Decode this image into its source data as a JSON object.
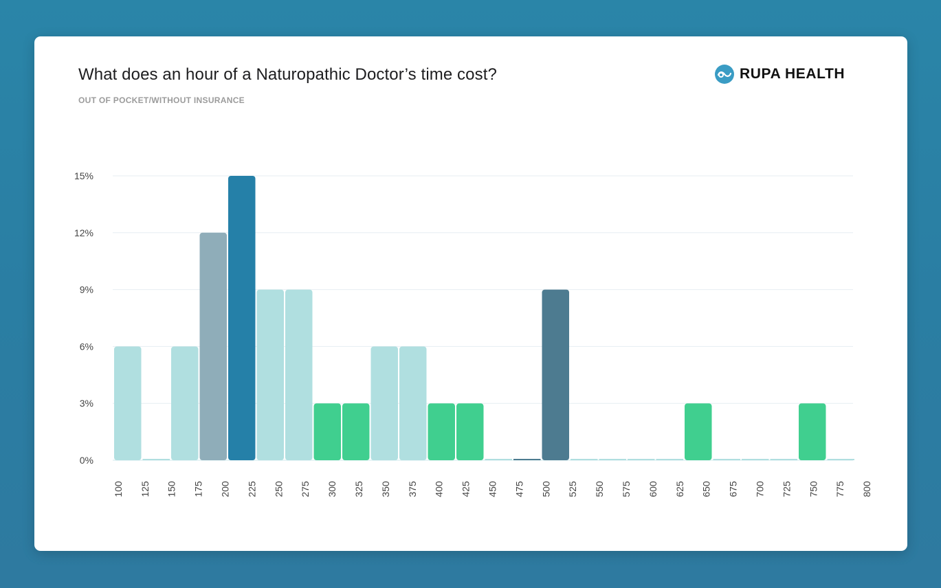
{
  "header": {
    "title": "What does an hour of a Naturopathic Doctor’s time cost?",
    "subtitle": "OUT OF POCKET/WITHOUT INSURANCE",
    "brand_name": "RUPA HEALTH",
    "brand_icon": "rupa-health-logo-icon",
    "brand_color": "#3a9cc4"
  },
  "chart_data": {
    "type": "bar",
    "title": "What does an hour of a Naturopathic Doctor’s time cost?",
    "subtitle": "OUT OF POCKET/WITHOUT INSURANCE",
    "xlabel": "",
    "ylabel": "",
    "ylim": [
      0,
      15
    ],
    "grid": true,
    "y_ticks": [
      {
        "value": 0,
        "label": "0%"
      },
      {
        "value": 3,
        "label": "3%"
      },
      {
        "value": 6,
        "label": "6%"
      },
      {
        "value": 9,
        "label": "9%"
      },
      {
        "value": 12,
        "label": "12%"
      },
      {
        "value": 15,
        "label": "15%"
      }
    ],
    "x_ticks": [
      "100",
      "125",
      "150",
      "175",
      "200",
      "225",
      "250",
      "275",
      "300",
      "325",
      "350",
      "375",
      "400",
      "425",
      "450",
      "475",
      "500",
      "525",
      "550",
      "575",
      "600",
      "625",
      "650",
      "675",
      "700",
      "725",
      "750",
      "775",
      "800"
    ],
    "bars": [
      {
        "bin": "100-125",
        "value": 6,
        "color": "#b0dfe0"
      },
      {
        "bin": "125-150",
        "value": 0,
        "color": "#b0dfe0"
      },
      {
        "bin": "150-175",
        "value": 6,
        "color": "#b0dfe0"
      },
      {
        "bin": "175-200",
        "value": 12,
        "color": "#8fadb9"
      },
      {
        "bin": "200-225",
        "value": 15,
        "color": "#2580a8"
      },
      {
        "bin": "225-250",
        "value": 9,
        "color": "#b0dfe0"
      },
      {
        "bin": "250-275",
        "value": 9,
        "color": "#b0dfe0"
      },
      {
        "bin": "275-300",
        "value": 3,
        "color": "#40cf8f"
      },
      {
        "bin": "300-325",
        "value": 3,
        "color": "#40cf8f"
      },
      {
        "bin": "325-350",
        "value": 6,
        "color": "#b0dfe0"
      },
      {
        "bin": "350-375",
        "value": 6,
        "color": "#b0dfe0"
      },
      {
        "bin": "375-400",
        "value": 3,
        "color": "#40cf8f"
      },
      {
        "bin": "400-425",
        "value": 3,
        "color": "#40cf8f"
      },
      {
        "bin": "425-450",
        "value": 0,
        "color": "#b0dfe0"
      },
      {
        "bin": "450-475",
        "value": 0,
        "color": "#4d7b90"
      },
      {
        "bin": "475-500",
        "value": 9,
        "color": "#4d7b90"
      },
      {
        "bin": "500-525",
        "value": 0,
        "color": "#b0dfe0"
      },
      {
        "bin": "525-550",
        "value": 0,
        "color": "#b0dfe0"
      },
      {
        "bin": "550-575",
        "value": 0,
        "color": "#b0dfe0"
      },
      {
        "bin": "575-600",
        "value": 0,
        "color": "#b0dfe0"
      },
      {
        "bin": "600-625",
        "value": 3,
        "color": "#40cf8f"
      },
      {
        "bin": "625-650",
        "value": 0,
        "color": "#b0dfe0"
      },
      {
        "bin": "650-675",
        "value": 0,
        "color": "#b0dfe0"
      },
      {
        "bin": "675-700",
        "value": 0,
        "color": "#b0dfe0"
      },
      {
        "bin": "700-725",
        "value": 3,
        "color": "#40cf8f"
      },
      {
        "bin": "725-750",
        "value": 0,
        "color": "#b0dfe0"
      }
    ],
    "colors": {
      "light_teal": "#b0dfe0",
      "gray_blue": "#8fadb9",
      "dark_blue": "#2580a8",
      "green": "#40cf8f",
      "slate": "#4d7b90",
      "gridline": "#e6eef2",
      "baseline": "#cfe9ee"
    }
  }
}
